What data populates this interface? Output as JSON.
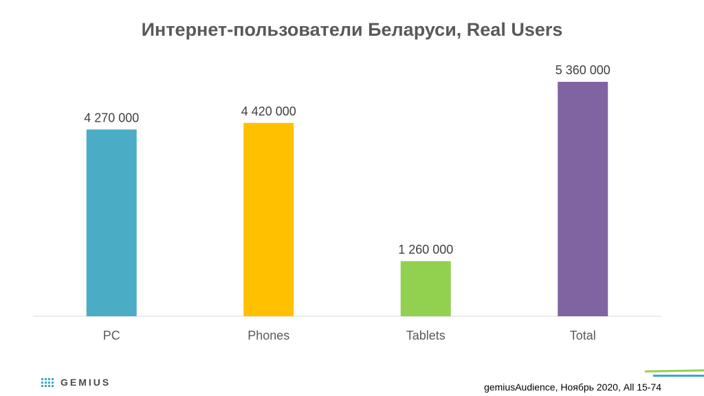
{
  "title": "Интернет-пользователи Беларуси, Real Users",
  "chart_data": {
    "type": "bar",
    "categories": [
      "PC",
      "Phones",
      "Tablets",
      "Total"
    ],
    "values": [
      4270000,
      4420000,
      1260000,
      5360000
    ],
    "data_labels": [
      "4 270 000",
      "4 420 000",
      "1 260 000",
      "5 360 000"
    ],
    "colors": [
      "#4bacc6",
      "#ffc000",
      "#92d050",
      "#8064a2"
    ],
    "title": "Интернет-пользователи Беларуси, Real Users",
    "xlabel": "",
    "ylabel": "",
    "ylim": [
      0,
      5360000
    ],
    "grid": false
  },
  "footer": {
    "logo_text": "GEMIUS",
    "source": "gemiusAudience, Ноябрь 2020, All 15-74"
  },
  "icons": {
    "logo": "gemius-dots-icon"
  }
}
